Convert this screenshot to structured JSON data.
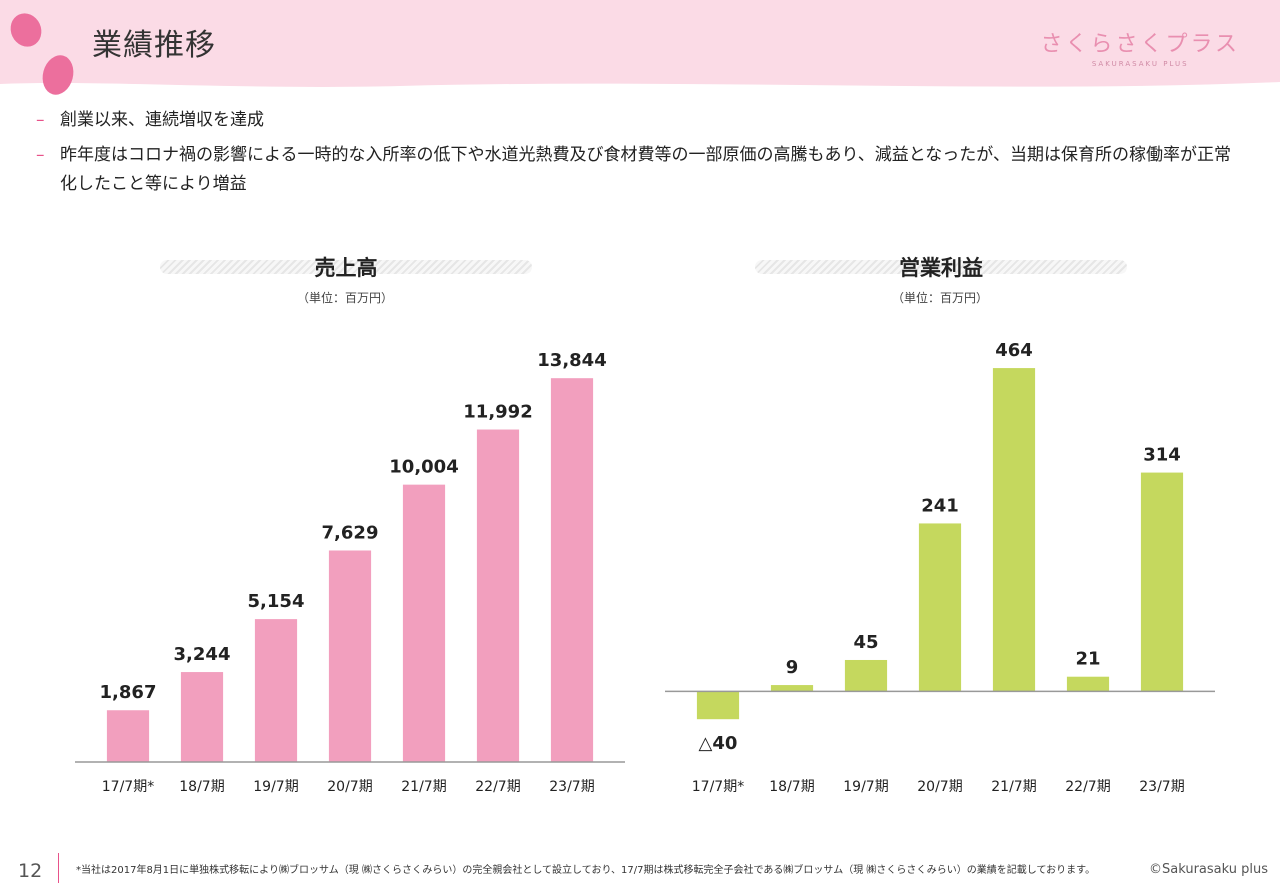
{
  "header": {
    "title": "業績推移"
  },
  "logo": {
    "main": "さくらさくプラス",
    "sub": "SAKURASAKU PLUS"
  },
  "bullets": [
    {
      "dash": "–",
      "text": "創業以来、連続増収を達成"
    },
    {
      "dash": "–",
      "text": "昨年度はコロナ禍の影響による一時的な入所率の低下や水道光熱費及び食材費等の一部原価の高騰もあり、減益となったが、当期は保育所の稼働率が正常化したこと等により増益"
    }
  ],
  "colors": {
    "accent": "#e8528a",
    "sales_bar": "#f29fbe",
    "profit_bar": "#c5d85e",
    "header_bg": "#fbdbe6"
  },
  "chart_data": [
    {
      "type": "bar",
      "title": "売上高",
      "unit": "（単位：百万円）",
      "categories": [
        "17/7期*",
        "18/7期",
        "19/7期",
        "20/7期",
        "21/7期",
        "22/7期",
        "23/7期"
      ],
      "values": [
        1867,
        3244,
        5154,
        7629,
        10004,
        11992,
        13844
      ],
      "labels": [
        "1,867",
        "3,244",
        "5,154",
        "7,629",
        "10,004",
        "11,992",
        "13,844"
      ],
      "ylim": [
        0,
        14500
      ]
    },
    {
      "type": "bar",
      "title": "営業利益",
      "unit": "（単位：百万円）",
      "categories": [
        "17/7期*",
        "18/7期",
        "19/7期",
        "20/7期",
        "21/7期",
        "22/7期",
        "23/7期"
      ],
      "values": [
        -40,
        9,
        45,
        241,
        464,
        21,
        314
      ],
      "labels": [
        "△40",
        "9",
        "45",
        "241",
        "464",
        "21",
        "314"
      ],
      "ylim": [
        -100,
        500
      ]
    }
  ],
  "footer": {
    "page": "12",
    "note": "*当社は2017年8月1日に単独株式移転により㈱ブロッサム（現 ㈱さくらさくみらい）の完全親会社として設立しており、17/7期は株式移転完全子会社である㈱ブロッサム（現 ㈱さくらさくみらい）の業績を記載しております。",
    "copyright": "©Sakurasaku plus"
  }
}
